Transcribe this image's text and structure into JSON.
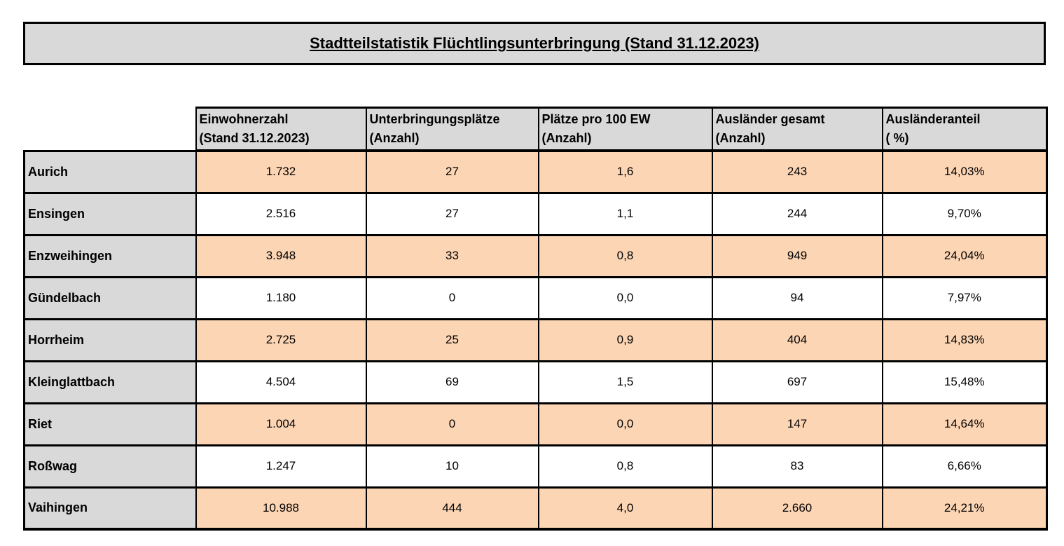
{
  "title": "Stadtteilstatistik Flüchtlingsunterbringung (Stand 31.12.2023)",
  "table": {
    "columns": [
      {
        "line1": "Einwohnerzahl",
        "line2": "(Stand 31.12.2023)"
      },
      {
        "line1": "Unterbringungsplätze",
        "line2": "(Anzahl)"
      },
      {
        "line1": "Plätze pro 100 EW",
        "line2": "(Anzahl)"
      },
      {
        "line1": "Ausländer gesamt",
        "line2": "(Anzahl)"
      },
      {
        "line1": "Ausländeranteil",
        "line2": "( %)"
      }
    ],
    "rows": [
      {
        "district": "Aurich",
        "values": [
          "1.732",
          "27",
          "1,6",
          "243",
          "14,03%"
        ]
      },
      {
        "district": "Ensingen",
        "values": [
          "2.516",
          "27",
          "1,1",
          "244",
          "9,70%"
        ]
      },
      {
        "district": "Enzweihingen",
        "values": [
          "3.948",
          "33",
          "0,8",
          "949",
          "24,04%"
        ]
      },
      {
        "district": "Gündelbach",
        "values": [
          "1.180",
          "0",
          "0,0",
          "94",
          "7,97%"
        ]
      },
      {
        "district": "Horrheim",
        "values": [
          "2.725",
          "25",
          "0,9",
          "404",
          "14,83%"
        ]
      },
      {
        "district": "Kleinglattbach",
        "values": [
          "4.504",
          "69",
          "1,5",
          "697",
          "15,48%"
        ]
      },
      {
        "district": "Riet",
        "values": [
          "1.004",
          "0",
          "0,0",
          "147",
          "14,64%"
        ]
      },
      {
        "district": "Roßwag",
        "values": [
          "1.247",
          "10",
          "0,8",
          "83",
          "6,66%"
        ]
      },
      {
        "district": "Vaihingen",
        "values": [
          "10.988",
          "444",
          "4,0",
          "2.660",
          "24,21%"
        ]
      }
    ]
  },
  "colors": {
    "header_bg": "#d9d9d9",
    "row_highlight": "#fcd5b4",
    "border": "#000000",
    "page_bg": "#ffffff"
  }
}
